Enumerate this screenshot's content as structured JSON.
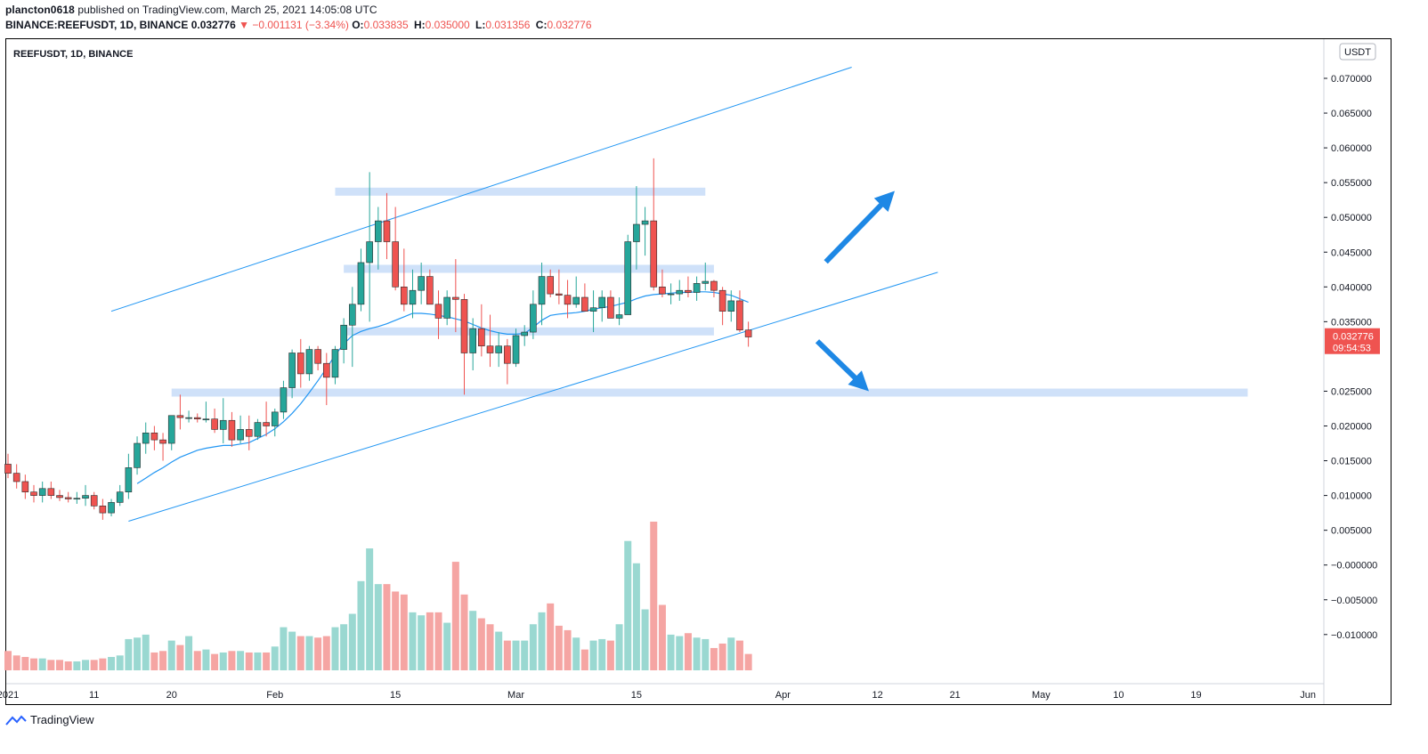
{
  "header": {
    "publisher": "plancton0618",
    "published_text": "published on TradingView.com, March 25, 2021 14:05:08 UTC",
    "symbol_line": "BINANCE:REEFUSDT, 1D, BINANCE",
    "last": "0.032776",
    "change_arrow": "▼",
    "change": "−0.001131 (−3.34%)",
    "ohlc": [
      {
        "k": "O:",
        "v": "0.033835"
      },
      {
        "k": "H:",
        "v": "0.035000"
      },
      {
        "k": "L:",
        "v": "0.031356"
      },
      {
        "k": "C:",
        "v": "0.032776"
      }
    ]
  },
  "footer": {
    "brand": "TradingView"
  },
  "chart_data": {
    "type": "candlestick",
    "title": "REEFUSDT, 1D, BINANCE",
    "currency_badge": "USDT",
    "last_price_label": "0.032776",
    "countdown_label": "09:54:53",
    "y_ticks": [
      "0.070000",
      "0.065000",
      "0.060000",
      "0.055000",
      "0.050000",
      "0.045000",
      "0.040000",
      "0.035000",
      "0.025000",
      "0.020000",
      "0.015000",
      "0.010000",
      "0.005000",
      "−0.000000",
      "−0.005000",
      "−0.010000"
    ],
    "y_tick_values": [
      0.07,
      0.065,
      0.06,
      0.055,
      0.05,
      0.045,
      0.04,
      0.035,
      0.025,
      0.02,
      0.015,
      0.01,
      0.005,
      0.0,
      -0.005,
      -0.01
    ],
    "ylim": [
      -0.0143,
      0.0745
    ],
    "x_ticks": [
      {
        "label": "2021",
        "day": 0
      },
      {
        "label": "11",
        "day": 10
      },
      {
        "label": "20",
        "day": 19
      },
      {
        "label": "Feb",
        "day": 31
      },
      {
        "label": "15",
        "day": 45
      },
      {
        "label": "Mar",
        "day": 59
      },
      {
        "label": "15",
        "day": 73
      },
      {
        "label": "Apr",
        "day": 90
      },
      {
        "label": "12",
        "day": 101
      },
      {
        "label": "21",
        "day": 110
      },
      {
        "label": "May",
        "day": 120
      },
      {
        "label": "10",
        "day": 129
      },
      {
        "label": "19",
        "day": 138
      },
      {
        "label": "Jun",
        "day": 151
      }
    ],
    "colors": {
      "up": "#26a69a",
      "down": "#ef5350",
      "vol_up": "#9ad8d1",
      "vol_down": "#f5a5a3",
      "ma": "#2196f3",
      "zone": "#c7dcf8",
      "arrow": "#1e88e5"
    },
    "candles": [
      [
        0.0145,
        0.016,
        0.0125,
        0.0132
      ],
      [
        0.0132,
        0.0145,
        0.011,
        0.012
      ],
      [
        0.012,
        0.013,
        0.0095,
        0.0105
      ],
      [
        0.0105,
        0.0115,
        0.009,
        0.01
      ],
      [
        0.01,
        0.012,
        0.009,
        0.011
      ],
      [
        0.011,
        0.012,
        0.0095,
        0.01
      ],
      [
        0.01,
        0.0108,
        0.0092,
        0.0097
      ],
      [
        0.0097,
        0.0105,
        0.009,
        0.0095
      ],
      [
        0.0095,
        0.0105,
        0.0088,
        0.0096
      ],
      [
        0.0096,
        0.0115,
        0.0085,
        0.01
      ],
      [
        0.01,
        0.0105,
        0.008,
        0.0085
      ],
      [
        0.0085,
        0.0095,
        0.0065,
        0.0075
      ],
      [
        0.0075,
        0.0095,
        0.007,
        0.009
      ],
      [
        0.009,
        0.0115,
        0.0085,
        0.0105
      ],
      [
        0.0105,
        0.016,
        0.0095,
        0.014
      ],
      [
        0.014,
        0.0185,
        0.013,
        0.0175
      ],
      [
        0.0175,
        0.0205,
        0.016,
        0.019
      ],
      [
        0.019,
        0.02,
        0.0165,
        0.018
      ],
      [
        0.018,
        0.019,
        0.015,
        0.0175
      ],
      [
        0.0175,
        0.0215,
        0.0165,
        0.0215
      ],
      [
        0.0215,
        0.0245,
        0.0195,
        0.0212
      ],
      [
        0.0212,
        0.0222,
        0.0205,
        0.0212
      ],
      [
        0.0212,
        0.0218,
        0.0205,
        0.021
      ],
      [
        0.021,
        0.0235,
        0.0205,
        0.021
      ],
      [
        0.021,
        0.0225,
        0.019,
        0.0195
      ],
      [
        0.0195,
        0.024,
        0.0175,
        0.0208
      ],
      [
        0.0208,
        0.022,
        0.017,
        0.018
      ],
      [
        0.018,
        0.0215,
        0.0175,
        0.0195
      ],
      [
        0.0195,
        0.0215,
        0.0165,
        0.0185
      ],
      [
        0.0185,
        0.021,
        0.018,
        0.0205
      ],
      [
        0.0205,
        0.0235,
        0.0185,
        0.02
      ],
      [
        0.02,
        0.0225,
        0.0185,
        0.022
      ],
      [
        0.022,
        0.0265,
        0.021,
        0.0255
      ],
      [
        0.0255,
        0.031,
        0.024,
        0.0305
      ],
      [
        0.0305,
        0.0325,
        0.0255,
        0.0275
      ],
      [
        0.0275,
        0.0315,
        0.0265,
        0.031
      ],
      [
        0.031,
        0.0315,
        0.028,
        0.029
      ],
      [
        0.029,
        0.0305,
        0.023,
        0.027
      ],
      [
        0.027,
        0.0315,
        0.026,
        0.031
      ],
      [
        0.031,
        0.0355,
        0.029,
        0.0345
      ],
      [
        0.0345,
        0.04,
        0.0285,
        0.0375
      ],
      [
        0.0375,
        0.0455,
        0.0365,
        0.0435
      ],
      [
        0.0435,
        0.0565,
        0.035,
        0.0465
      ],
      [
        0.0465,
        0.0515,
        0.0425,
        0.0495
      ],
      [
        0.0495,
        0.0535,
        0.044,
        0.0465
      ],
      [
        0.0465,
        0.0515,
        0.0395,
        0.04
      ],
      [
        0.04,
        0.0455,
        0.0365,
        0.0375
      ],
      [
        0.0375,
        0.0425,
        0.0355,
        0.0395
      ],
      [
        0.0395,
        0.0435,
        0.0375,
        0.0415
      ],
      [
        0.0415,
        0.0425,
        0.038,
        0.0375
      ],
      [
        0.0375,
        0.0395,
        0.0325,
        0.0355
      ],
      [
        0.0355,
        0.0395,
        0.0345,
        0.0385
      ],
      [
        0.0385,
        0.044,
        0.0335,
        0.0382
      ],
      [
        0.0382,
        0.039,
        0.0245,
        0.0305
      ],
      [
        0.0305,
        0.0355,
        0.028,
        0.034
      ],
      [
        0.034,
        0.0375,
        0.03,
        0.0315
      ],
      [
        0.0315,
        0.036,
        0.0285,
        0.0305
      ],
      [
        0.0305,
        0.0335,
        0.0285,
        0.0315
      ],
      [
        0.0315,
        0.0325,
        0.026,
        0.029
      ],
      [
        0.029,
        0.034,
        0.0285,
        0.033
      ],
      [
        0.033,
        0.0345,
        0.0315,
        0.0335
      ],
      [
        0.0335,
        0.0395,
        0.0325,
        0.0375
      ],
      [
        0.0375,
        0.0435,
        0.0345,
        0.0415
      ],
      [
        0.0415,
        0.0425,
        0.0385,
        0.039
      ],
      [
        0.039,
        0.0425,
        0.0375,
        0.0388
      ],
      [
        0.0388,
        0.041,
        0.0355,
        0.0375
      ],
      [
        0.0375,
        0.0415,
        0.037,
        0.0385
      ],
      [
        0.0385,
        0.0405,
        0.0365,
        0.0365
      ],
      [
        0.0365,
        0.0395,
        0.0335,
        0.037
      ],
      [
        0.037,
        0.0395,
        0.035,
        0.0385
      ],
      [
        0.0385,
        0.0395,
        0.0355,
        0.0355
      ],
      [
        0.0355,
        0.0385,
        0.0345,
        0.036
      ],
      [
        0.036,
        0.0475,
        0.0365,
        0.0465
      ],
      [
        0.0465,
        0.0545,
        0.0425,
        0.049
      ],
      [
        0.049,
        0.0515,
        0.0445,
        0.0495
      ],
      [
        0.0495,
        0.0585,
        0.0395,
        0.04
      ],
      [
        0.04,
        0.0425,
        0.0385,
        0.039
      ],
      [
        0.039,
        0.0405,
        0.0375,
        0.039
      ],
      [
        0.039,
        0.041,
        0.038,
        0.0395
      ],
      [
        0.0395,
        0.0415,
        0.0385,
        0.0392
      ],
      [
        0.0392,
        0.0415,
        0.038,
        0.0405
      ],
      [
        0.0405,
        0.0435,
        0.0395,
        0.0408
      ],
      [
        0.0408,
        0.041,
        0.0385,
        0.0395
      ],
      [
        0.0395,
        0.04,
        0.0345,
        0.0365
      ],
      [
        0.0365,
        0.0395,
        0.035,
        0.038
      ],
      [
        0.038,
        0.0395,
        0.0335,
        0.0338
      ],
      [
        0.0338,
        0.035,
        0.0314,
        0.0328
      ]
    ],
    "volume_scale_max": 100,
    "volumes": [
      13,
      10,
      9,
      8,
      8,
      7,
      7,
      6,
      6,
      7,
      7,
      8,
      9,
      10,
      21,
      22,
      24,
      12,
      13,
      20,
      17,
      23,
      13,
      14,
      11,
      12,
      13,
      13,
      12,
      12,
      12,
      16,
      29,
      26,
      23,
      23,
      22,
      23,
      29,
      31,
      38,
      60,
      82,
      58,
      58,
      53,
      51,
      39,
      37,
      39,
      39,
      32,
      73,
      51,
      40,
      35,
      31,
      26,
      20,
      20,
      20,
      31,
      39,
      45,
      30,
      27,
      22,
      14,
      20,
      21,
      20,
      31,
      87,
      72,
      41,
      100,
      44,
      24,
      23,
      25,
      22,
      21,
      15,
      18,
      22,
      20,
      11
    ],
    "ma20": [
      null,
      null,
      null,
      null,
      null,
      null,
      null,
      null,
      null,
      null,
      null,
      null,
      null,
      null,
      null,
      0.0117,
      0.0125,
      0.0133,
      0.014,
      0.0148,
      0.0155,
      0.016,
      0.0165,
      0.0168,
      0.017,
      0.0172,
      0.0172,
      0.0174,
      0.0176,
      0.0182,
      0.0188,
      0.0196,
      0.0206,
      0.0218,
      0.0232,
      0.0248,
      0.0265,
      0.0283,
      0.0302,
      0.0318,
      0.033,
      0.0336,
      0.034,
      0.0343,
      0.0347,
      0.0352,
      0.0357,
      0.0362,
      0.0362,
      0.0361,
      0.0359,
      0.0357,
      0.0354,
      0.0351,
      0.0346,
      0.0341,
      0.0337,
      0.0334,
      0.0332,
      0.0332,
      0.0333,
      0.0342,
      0.0352,
      0.0359,
      0.0361,
      0.0362,
      0.0363,
      0.0365,
      0.0368,
      0.037,
      0.0372,
      0.0375,
      0.0378,
      0.0383,
      0.0387,
      0.0389,
      0.039,
      0.0391,
      0.0392,
      0.0392,
      0.0393,
      0.0393,
      0.0392,
      0.039,
      0.0388,
      0.0383,
      0.0378
    ],
    "zones": [
      {
        "from_day": 38,
        "to_day": 81,
        "price": 0.0537
      },
      {
        "from_day": 39,
        "to_day": 82,
        "price": 0.0426
      },
      {
        "from_day": 39,
        "to_day": 82,
        "price": 0.0336
      },
      {
        "from_day": 19,
        "to_day": 144,
        "price": 0.0248
      }
    ],
    "trend_lines": [
      {
        "x1": 12,
        "y1": 0.0365,
        "x2": 98,
        "y2": 0.0716
      },
      {
        "x1": 14,
        "y1": 0.0063,
        "x2": 108,
        "y2": 0.0421
      }
    ],
    "arrows": [
      {
        "x1": 95,
        "y1": 0.0436,
        "x2": 103,
        "y2": 0.0538
      },
      {
        "x1": 94,
        "y1": 0.0322,
        "x2": 100,
        "y2": 0.025
      }
    ]
  }
}
